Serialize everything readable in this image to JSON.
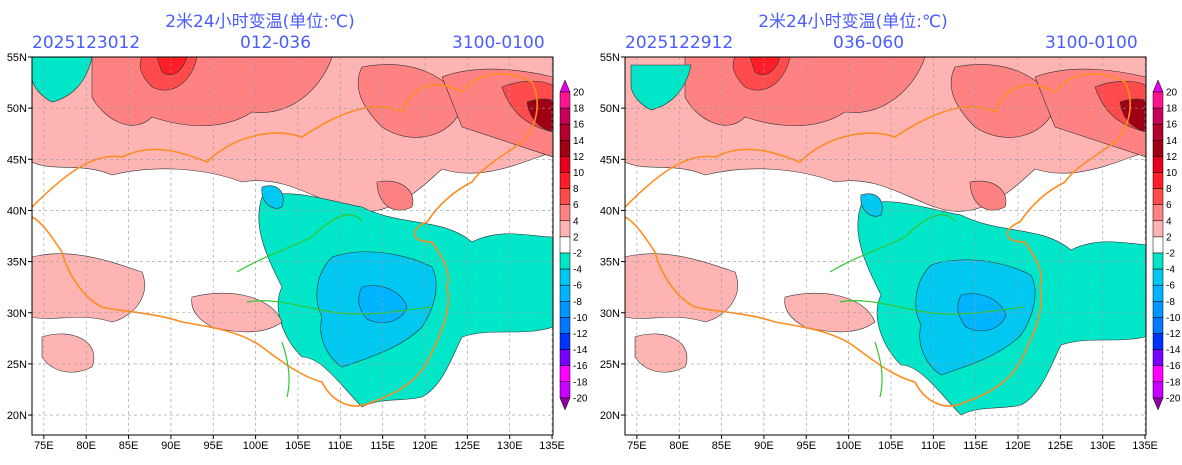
{
  "panels": [
    {
      "title": "2米24小时变温(单位:℃)",
      "init_time": "2025123012",
      "forecast_range": "012-036",
      "valid_range": "3100-0100"
    },
    {
      "title": "2米24小时变温(单位:℃)",
      "init_time": "2025122912",
      "forecast_range": "036-060",
      "valid_range": "3100-0100"
    }
  ],
  "axes": {
    "lon_labels": [
      "75E",
      "80E",
      "85E",
      "90E",
      "95E",
      "100E",
      "105E",
      "110E",
      "115E",
      "120E",
      "125E",
      "130E",
      "135E"
    ],
    "lat_labels": [
      "20N",
      "25N",
      "30N",
      "35N",
      "40N",
      "45N",
      "50N",
      "55N"
    ]
  },
  "colorbar": {
    "labels": [
      "20",
      "18",
      "16",
      "14",
      "12",
      "10",
      "8",
      "6",
      "4",
      "2",
      "-2",
      "-4",
      "-6",
      "-8",
      "-10",
      "-12",
      "-14",
      "-16",
      "-18",
      "-20"
    ],
    "colors": [
      "#e600e6",
      "#ff1493",
      "#c8005a",
      "#b4002d",
      "#a00014",
      "#e6001e",
      "#ff1e28",
      "#ff4b4b",
      "#ff8282",
      "#ffb4b4",
      "#ffffff",
      "#00e6c8",
      "#00c8f0",
      "#00b4ff",
      "#0096ff",
      "#0078ff",
      "#0032ff",
      "#7800ff",
      "#ff00ff",
      "#c800ff",
      "#8c00a0"
    ]
  },
  "colors": {
    "border": "#ff8c1e",
    "river": "#32c832",
    "province": "#8b2a2a",
    "header_text": "#4a5cff"
  }
}
